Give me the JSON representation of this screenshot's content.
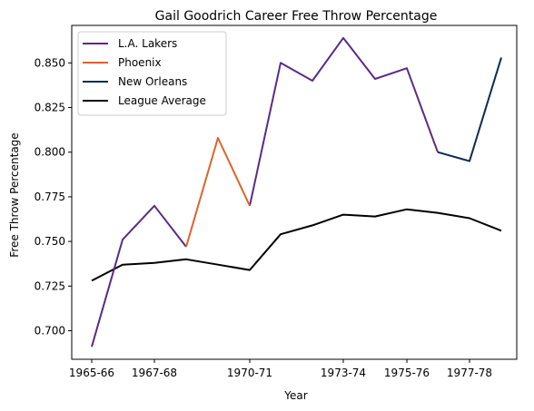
{
  "chart_data": {
    "type": "line",
    "title": "Gail Goodrich Career Free Throw Percentage",
    "xlabel": "Year",
    "ylabel": "Free Throw Percentage",
    "x": [
      "1965-66",
      "1966-67",
      "1967-68",
      "1968-69",
      "1969-70",
      "1970-71",
      "1971-72",
      "1972-73",
      "1973-74",
      "1974-75",
      "1975-76",
      "1976-77",
      "1977-78",
      "1978-79"
    ],
    "x_ticks": [
      "1965-66",
      "1967-68",
      "1970-71",
      "1973-74",
      "1975-76",
      "1977-78"
    ],
    "ylim": [
      0.685,
      0.672
    ],
    "y_range": [
      0.684,
      0.671
    ],
    "y_ticks": [
      0.7,
      0.725,
      0.75,
      0.775,
      0.8,
      0.825,
      0.85
    ],
    "grid": false,
    "legend_position": "upper-left",
    "series": [
      {
        "name": "L.A. Lakers",
        "color": "#5b2a86",
        "segments": [
          {
            "x": [
              "1965-66",
              "1966-67",
              "1967-68",
              "1968-69"
            ],
            "values": [
              0.691,
              0.751,
              0.77,
              0.747
            ]
          },
          {
            "x": [
              "1970-71",
              "1971-72",
              "1972-73",
              "1973-74",
              "1974-75",
              "1975-76",
              "1976-77"
            ],
            "values": [
              0.77,
              0.85,
              0.84,
              0.864,
              0.841,
              0.847,
              0.8
            ]
          }
        ]
      },
      {
        "name": "Phoenix",
        "color": "#e0622a",
        "segments": [
          {
            "x": [
              "1968-69",
              "1969-70",
              "1970-71"
            ],
            "values": [
              0.747,
              0.808,
              0.77
            ]
          }
        ]
      },
      {
        "name": "New Orleans",
        "color": "#0c2b52",
        "segments": [
          {
            "x": [
              "1976-77",
              "1977-78",
              "1978-79"
            ],
            "values": [
              0.8,
              0.795,
              0.853
            ]
          }
        ]
      },
      {
        "name": "League Average",
        "color": "#000000",
        "segments": [
          {
            "x": [
              "1965-66",
              "1966-67",
              "1967-68",
              "1968-69",
              "1969-70",
              "1970-71",
              "1971-72",
              "1972-73",
              "1973-74",
              "1974-75",
              "1975-76",
              "1976-77",
              "1977-78",
              "1978-79"
            ],
            "values": [
              0.728,
              0.737,
              0.738,
              0.74,
              0.737,
              0.734,
              0.754,
              0.759,
              0.765,
              0.764,
              0.768,
              0.766,
              0.763,
              0.756
            ]
          }
        ]
      }
    ]
  }
}
